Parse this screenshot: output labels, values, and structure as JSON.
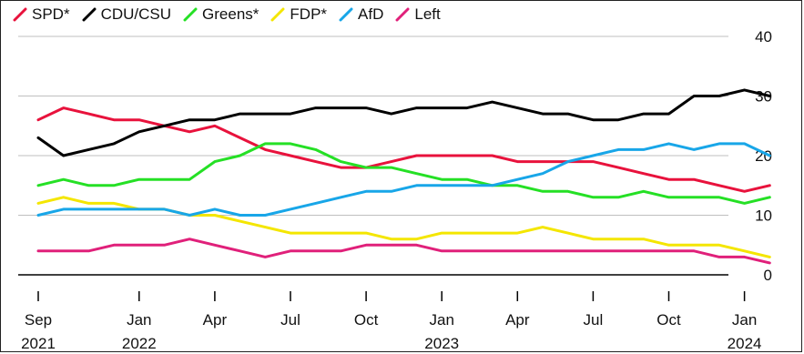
{
  "chart_data": {
    "type": "line",
    "title": "",
    "xlabel": "",
    "ylabel": "",
    "ylim": [
      0,
      40
    ],
    "y_ticks": [
      0,
      10,
      20,
      30,
      40
    ],
    "x_range": [
      "2021-09",
      "2024-03"
    ],
    "x_ticks": [
      {
        "date": "2021-09",
        "month": "Sep",
        "year": "2021"
      },
      {
        "date": "2022-01",
        "month": "Jan",
        "year": "2022"
      },
      {
        "date": "2022-04",
        "month": "Apr",
        "year": ""
      },
      {
        "date": "2022-07",
        "month": "Jul",
        "year": ""
      },
      {
        "date": "2022-10",
        "month": "Oct",
        "year": ""
      },
      {
        "date": "2023-01",
        "month": "Jan",
        "year": "2023"
      },
      {
        "date": "2023-04",
        "month": "Apr",
        "year": ""
      },
      {
        "date": "2023-07",
        "month": "Jul",
        "year": ""
      },
      {
        "date": "2023-10",
        "month": "Oct",
        "year": ""
      },
      {
        "date": "2024-01",
        "month": "Jan",
        "year": "2024"
      }
    ],
    "grid": true,
    "legend": "top-left",
    "series": [
      {
        "name": "SPD*",
        "color": "#e8123c",
        "points": [
          [
            "2021-09",
            26
          ],
          [
            "2021-10",
            28
          ],
          [
            "2021-11",
            27
          ],
          [
            "2021-12",
            26
          ],
          [
            "2022-01",
            26
          ],
          [
            "2022-02",
            25
          ],
          [
            "2022-03",
            24
          ],
          [
            "2022-04",
            25
          ],
          [
            "2022-05",
            23
          ],
          [
            "2022-06",
            21
          ],
          [
            "2022-07",
            20
          ],
          [
            "2022-08",
            19
          ],
          [
            "2022-09",
            18
          ],
          [
            "2022-10",
            18
          ],
          [
            "2022-11",
            19
          ],
          [
            "2022-12",
            20
          ],
          [
            "2023-01",
            20
          ],
          [
            "2023-02",
            20
          ],
          [
            "2023-03",
            20
          ],
          [
            "2023-04",
            19
          ],
          [
            "2023-05",
            19
          ],
          [
            "2023-06",
            19
          ],
          [
            "2023-07",
            19
          ],
          [
            "2023-08",
            18
          ],
          [
            "2023-09",
            17
          ],
          [
            "2023-10",
            16
          ],
          [
            "2023-11",
            16
          ],
          [
            "2023-12",
            15
          ],
          [
            "2024-01",
            14
          ],
          [
            "2024-02",
            15
          ]
        ]
      },
      {
        "name": "CDU/CSU",
        "color": "#000000",
        "points": [
          [
            "2021-09",
            23
          ],
          [
            "2021-10",
            20
          ],
          [
            "2021-11",
            21
          ],
          [
            "2021-12",
            22
          ],
          [
            "2022-01",
            24
          ],
          [
            "2022-02",
            25
          ],
          [
            "2022-03",
            26
          ],
          [
            "2022-04",
            26
          ],
          [
            "2022-05",
            27
          ],
          [
            "2022-06",
            27
          ],
          [
            "2022-07",
            27
          ],
          [
            "2022-08",
            28
          ],
          [
            "2022-09",
            28
          ],
          [
            "2022-10",
            28
          ],
          [
            "2022-11",
            27
          ],
          [
            "2022-12",
            28
          ],
          [
            "2023-01",
            28
          ],
          [
            "2023-02",
            28
          ],
          [
            "2023-03",
            29
          ],
          [
            "2023-04",
            28
          ],
          [
            "2023-05",
            27
          ],
          [
            "2023-06",
            27
          ],
          [
            "2023-07",
            26
          ],
          [
            "2023-08",
            26
          ],
          [
            "2023-09",
            27
          ],
          [
            "2023-10",
            27
          ],
          [
            "2023-11",
            30
          ],
          [
            "2023-12",
            30
          ],
          [
            "2024-01",
            31
          ],
          [
            "2024-02",
            30
          ]
        ]
      },
      {
        "name": "Greens*",
        "color": "#25e025",
        "points": [
          [
            "2021-09",
            15
          ],
          [
            "2021-10",
            16
          ],
          [
            "2021-11",
            15
          ],
          [
            "2021-12",
            15
          ],
          [
            "2022-01",
            16
          ],
          [
            "2022-02",
            16
          ],
          [
            "2022-03",
            16
          ],
          [
            "2022-04",
            19
          ],
          [
            "2022-05",
            20
          ],
          [
            "2022-06",
            22
          ],
          [
            "2022-07",
            22
          ],
          [
            "2022-08",
            21
          ],
          [
            "2022-09",
            19
          ],
          [
            "2022-10",
            18
          ],
          [
            "2022-11",
            18
          ],
          [
            "2022-12",
            17
          ],
          [
            "2023-01",
            16
          ],
          [
            "2023-02",
            16
          ],
          [
            "2023-03",
            15
          ],
          [
            "2023-04",
            15
          ],
          [
            "2023-05",
            14
          ],
          [
            "2023-06",
            14
          ],
          [
            "2023-07",
            13
          ],
          [
            "2023-08",
            13
          ],
          [
            "2023-09",
            14
          ],
          [
            "2023-10",
            13
          ],
          [
            "2023-11",
            13
          ],
          [
            "2023-12",
            13
          ],
          [
            "2024-01",
            12
          ],
          [
            "2024-02",
            13
          ]
        ]
      },
      {
        "name": "FDP*",
        "color": "#f4e600",
        "points": [
          [
            "2021-09",
            12
          ],
          [
            "2021-10",
            13
          ],
          [
            "2021-11",
            12
          ],
          [
            "2021-12",
            12
          ],
          [
            "2022-01",
            11
          ],
          [
            "2022-02",
            11
          ],
          [
            "2022-03",
            10
          ],
          [
            "2022-04",
            10
          ],
          [
            "2022-05",
            9
          ],
          [
            "2022-06",
            8
          ],
          [
            "2022-07",
            7
          ],
          [
            "2022-08",
            7
          ],
          [
            "2022-09",
            7
          ],
          [
            "2022-10",
            7
          ],
          [
            "2022-11",
            6
          ],
          [
            "2022-12",
            6
          ],
          [
            "2023-01",
            7
          ],
          [
            "2023-02",
            7
          ],
          [
            "2023-03",
            7
          ],
          [
            "2023-04",
            7
          ],
          [
            "2023-05",
            8
          ],
          [
            "2023-06",
            7
          ],
          [
            "2023-07",
            6
          ],
          [
            "2023-08",
            6
          ],
          [
            "2023-09",
            6
          ],
          [
            "2023-10",
            5
          ],
          [
            "2023-11",
            5
          ],
          [
            "2023-12",
            5
          ],
          [
            "2024-01",
            4
          ],
          [
            "2024-02",
            3
          ]
        ]
      },
      {
        "name": "AfD",
        "color": "#18a6e8",
        "points": [
          [
            "2021-09",
            10
          ],
          [
            "2021-10",
            11
          ],
          [
            "2021-11",
            11
          ],
          [
            "2021-12",
            11
          ],
          [
            "2022-01",
            11
          ],
          [
            "2022-02",
            11
          ],
          [
            "2022-03",
            10
          ],
          [
            "2022-04",
            11
          ],
          [
            "2022-05",
            10
          ],
          [
            "2022-06",
            10
          ],
          [
            "2022-07",
            11
          ],
          [
            "2022-08",
            12
          ],
          [
            "2022-09",
            13
          ],
          [
            "2022-10",
            14
          ],
          [
            "2022-11",
            14
          ],
          [
            "2022-12",
            15
          ],
          [
            "2023-01",
            15
          ],
          [
            "2023-02",
            15
          ],
          [
            "2023-03",
            15
          ],
          [
            "2023-04",
            16
          ],
          [
            "2023-05",
            17
          ],
          [
            "2023-06",
            19
          ],
          [
            "2023-07",
            20
          ],
          [
            "2023-08",
            21
          ],
          [
            "2023-09",
            21
          ],
          [
            "2023-10",
            22
          ],
          [
            "2023-11",
            21
          ],
          [
            "2023-12",
            22
          ],
          [
            "2024-01",
            22
          ],
          [
            "2024-02",
            20
          ]
        ]
      },
      {
        "name": "Left",
        "color": "#e0207a",
        "points": [
          [
            "2021-09",
            4
          ],
          [
            "2021-10",
            4
          ],
          [
            "2021-11",
            4
          ],
          [
            "2021-12",
            5
          ],
          [
            "2022-01",
            5
          ],
          [
            "2022-02",
            5
          ],
          [
            "2022-03",
            6
          ],
          [
            "2022-04",
            5
          ],
          [
            "2022-05",
            4
          ],
          [
            "2022-06",
            3
          ],
          [
            "2022-07",
            4
          ],
          [
            "2022-08",
            4
          ],
          [
            "2022-09",
            4
          ],
          [
            "2022-10",
            5
          ],
          [
            "2022-11",
            5
          ],
          [
            "2022-12",
            5
          ],
          [
            "2023-01",
            4
          ],
          [
            "2023-02",
            4
          ],
          [
            "2023-03",
            4
          ],
          [
            "2023-04",
            4
          ],
          [
            "2023-05",
            4
          ],
          [
            "2023-06",
            4
          ],
          [
            "2023-07",
            4
          ],
          [
            "2023-08",
            4
          ],
          [
            "2023-09",
            4
          ],
          [
            "2023-10",
            4
          ],
          [
            "2023-11",
            4
          ],
          [
            "2023-12",
            3
          ],
          [
            "2024-01",
            3
          ],
          [
            "2024-02",
            2
          ]
        ]
      }
    ]
  }
}
